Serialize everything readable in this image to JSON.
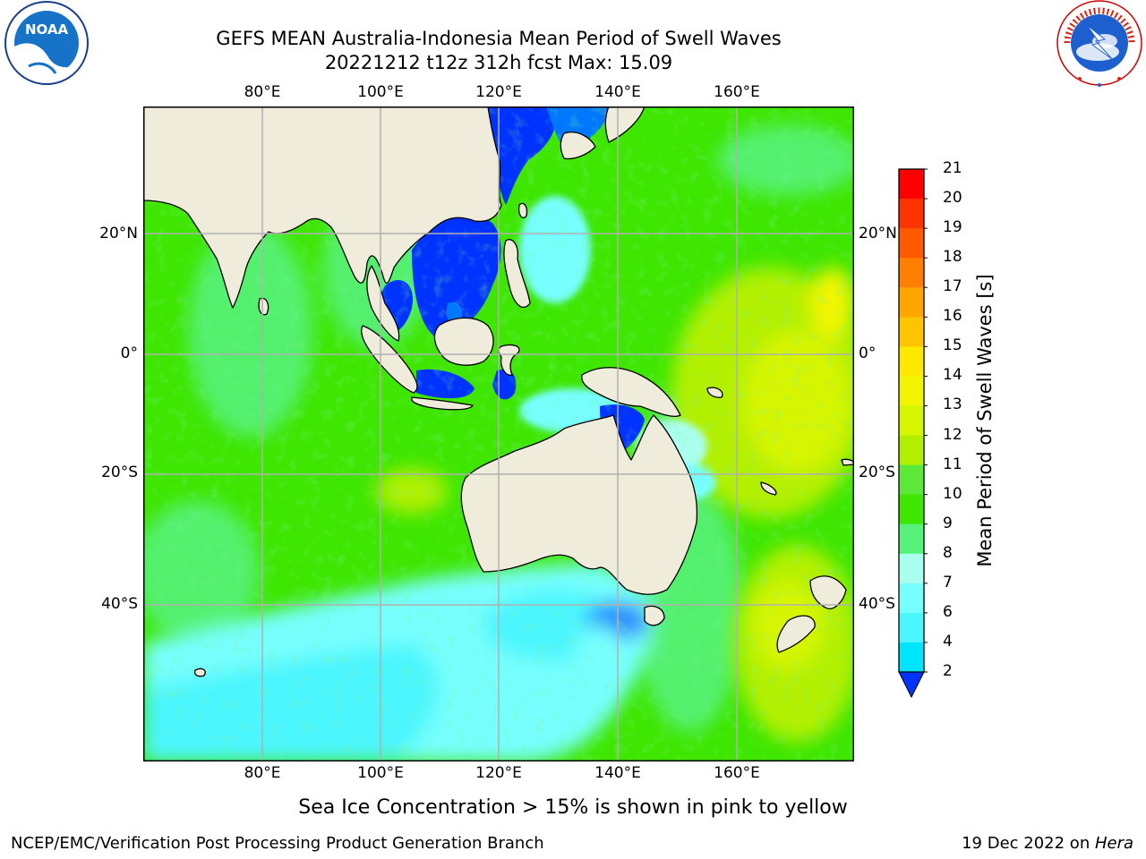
{
  "header": {
    "title_line1": "GEFS MEAN Australia-Indonesia Mean Period of Swell Waves",
    "title_line2": "20221212 t12z 312h fcst   Max: 15.09"
  },
  "logos": {
    "left": "NOAA",
    "left_ring_text": "NATIONAL OCEANIC AND ATMOSPHERIC ADMINISTRATION · U.S. DEPARTMENT OF COMMERCE",
    "right_ring_text": "NATIONAL WEATHER SERVICE"
  },
  "map": {
    "lon_labels": [
      "80°E",
      "100°E",
      "120°E",
      "140°E",
      "160°E"
    ],
    "lat_labels": [
      "20°N",
      "0°",
      "20°S",
      "40°S"
    ],
    "colors": {
      "land": "#efecdc",
      "grid": "#b0b0b0"
    }
  },
  "colorbar": {
    "label": "Mean Period of Swell Waves [s]",
    "ticks": [
      "21",
      "20",
      "19",
      "18",
      "17",
      "16",
      "15",
      "14",
      "13",
      "12",
      "11",
      "10",
      "9",
      "8",
      "7",
      "6",
      "4",
      "2"
    ],
    "colors": [
      "#ff0000",
      "#ff3300",
      "#ff5a00",
      "#ff7f00",
      "#ffa500",
      "#ffc400",
      "#ffe800",
      "#f2f500",
      "#d6f500",
      "#b2f000",
      "#5ee83a",
      "#3fe600",
      "#56f27a",
      "#aaffee",
      "#77ffff",
      "#4cf6ff",
      "#00e5ff",
      "#0077ff",
      "#0033ff"
    ]
  },
  "note": "Sea Ice Concentration > 15% is shown in pink to yellow",
  "footer": {
    "left": "NCEP/EMC/Verification Post Processing Product Generation Branch",
    "right_prefix": "19 Dec 2022 on ",
    "right_italic": "Hera"
  }
}
